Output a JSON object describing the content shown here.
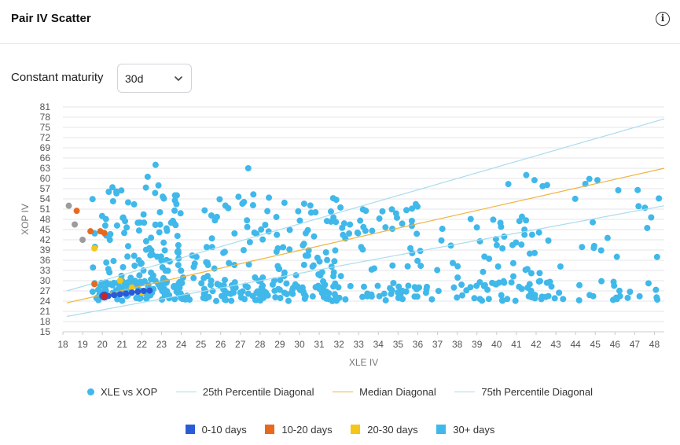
{
  "header": {
    "title": "Pair IV Scatter",
    "info_icon": "info-icon"
  },
  "controls": {
    "maturity_label": "Constant maturity",
    "maturity_value": "30d"
  },
  "legend_series": [
    {
      "label": "XLE vs XOP",
      "color": "#40b8ea",
      "kind": "dot"
    },
    {
      "label": "25th Percentile Diagonal",
      "color": "#aadcec",
      "kind": "line"
    },
    {
      "label": "Median Diagonal",
      "color": "#f2b33d",
      "kind": "line"
    },
    {
      "label": "75th Percentile Diagonal",
      "color": "#aadcec",
      "kind": "line"
    }
  ],
  "legend_days": [
    {
      "label": "0-10 days",
      "color": "#2a5bd7"
    },
    {
      "label": "10-20 days",
      "color": "#e8691e"
    },
    {
      "label": "20-30 days",
      "color": "#f5c518"
    },
    {
      "label": "30+ days",
      "color": "#40b8ea"
    }
  ],
  "chart_data": {
    "type": "scatter",
    "xlabel": "XLE IV",
    "ylabel": "XOP IV",
    "xlim": [
      18,
      48.5
    ],
    "ylim": [
      15,
      81
    ],
    "x_ticks": [
      18,
      19,
      20,
      21,
      22,
      23,
      24,
      25,
      26,
      27,
      28,
      29,
      30,
      31,
      32,
      33,
      34,
      35,
      36,
      37,
      38,
      39,
      40,
      41,
      42,
      43,
      44,
      45,
      46,
      47,
      48
    ],
    "y_ticks": [
      15,
      18,
      21,
      24,
      27,
      30,
      33,
      36,
      39,
      42,
      45,
      48,
      51,
      54,
      57,
      60,
      63,
      66,
      69,
      72,
      75,
      78,
      81
    ],
    "grid": "horizontal",
    "diagonals": [
      {
        "name": "25th Percentile Diagonal",
        "color": "#aadcec",
        "points": [
          [
            18.2,
            19.5
          ],
          [
            48.5,
            52
          ]
        ]
      },
      {
        "name": "Median Diagonal",
        "color": "#f2b33d",
        "points": [
          [
            18.2,
            23.5
          ],
          [
            48.5,
            63
          ]
        ]
      },
      {
        "name": "75th Percentile Diagonal",
        "color": "#aadcec",
        "points": [
          [
            18.2,
            27
          ],
          [
            48.5,
            77.5
          ]
        ]
      }
    ],
    "colored_points": [
      {
        "group": "gray",
        "color": "#9c9c9c",
        "points": [
          [
            18.3,
            52
          ],
          [
            18.6,
            46.5
          ],
          [
            19.0,
            42
          ]
        ]
      },
      {
        "group": "10-20 days",
        "color": "#e8691e",
        "points": [
          [
            18.7,
            50.5
          ],
          [
            19.4,
            44.5
          ],
          [
            19.9,
            44.5
          ],
          [
            20.1,
            44
          ],
          [
            19.6,
            29
          ]
        ]
      },
      {
        "group": "20-30 days",
        "color": "#f5c518",
        "points": [
          [
            19.6,
            39.5
          ],
          [
            20.9,
            30
          ],
          [
            21.5,
            28
          ],
          [
            22.0,
            26.5
          ]
        ]
      },
      {
        "group": "0-10 days",
        "color": "#2a5bd7",
        "points": [
          [
            20.0,
            25.5
          ],
          [
            20.3,
            25.5
          ],
          [
            20.6,
            25.8
          ],
          [
            20.9,
            26.0
          ],
          [
            21.2,
            26.2
          ],
          [
            21.5,
            26.5
          ],
          [
            21.8,
            26.8
          ],
          [
            22.1,
            27.0
          ],
          [
            22.4,
            27.1
          ]
        ]
      },
      {
        "group": "latest",
        "color": "#c62828",
        "points": [
          [
            20.1,
            25.5
          ]
        ]
      }
    ],
    "scatter_30plus": {
      "n": 620,
      "seed": 20240611,
      "color": "#40b8ea"
    }
  }
}
